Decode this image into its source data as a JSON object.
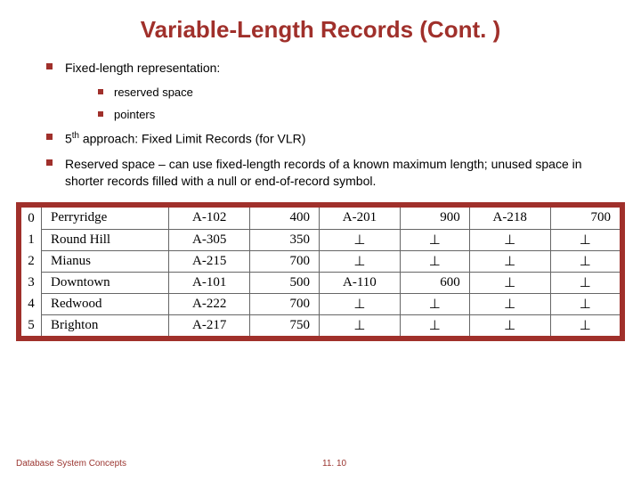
{
  "title": "Variable-Length Records (Cont. )",
  "bullets": {
    "b1": "Fixed-length representation:",
    "b2a": "reserved space",
    "b2b": "pointers",
    "b3_pre": "5",
    "b3_sup": "th",
    "b3_post": " approach: Fixed Limit Records (for VLR)",
    "b4": "Reserved space – can use fixed-length records of a known maximum length; unused space in shorter records filled with a null or end-of-record symbol."
  },
  "table": {
    "border_color": "#a0302b",
    "indices": [
      "0",
      "1",
      "2",
      "3",
      "4",
      "5"
    ],
    "col_widths": [
      "110px",
      "70px",
      "60px",
      "70px",
      "60px",
      "70px",
      "60px"
    ],
    "rows": [
      [
        "Perryridge",
        "A-102",
        "400",
        "A-201",
        "900",
        "A-218",
        "700"
      ],
      [
        "Round Hill",
        "A-305",
        "350",
        "⊥",
        "⊥",
        "⊥",
        "⊥"
      ],
      [
        "Mianus",
        "A-215",
        "700",
        "⊥",
        "⊥",
        "⊥",
        "⊥"
      ],
      [
        "Downtown",
        "A-101",
        "500",
        "A-110",
        "600",
        "⊥",
        "⊥"
      ],
      [
        "Redwood",
        "A-222",
        "700",
        "⊥",
        "⊥",
        "⊥",
        "⊥"
      ],
      [
        "Brighton",
        "A-217",
        "750",
        "⊥",
        "⊥",
        "⊥",
        "⊥"
      ]
    ]
  },
  "footer": "Database System Concepts",
  "pagenum": "11. 10"
}
